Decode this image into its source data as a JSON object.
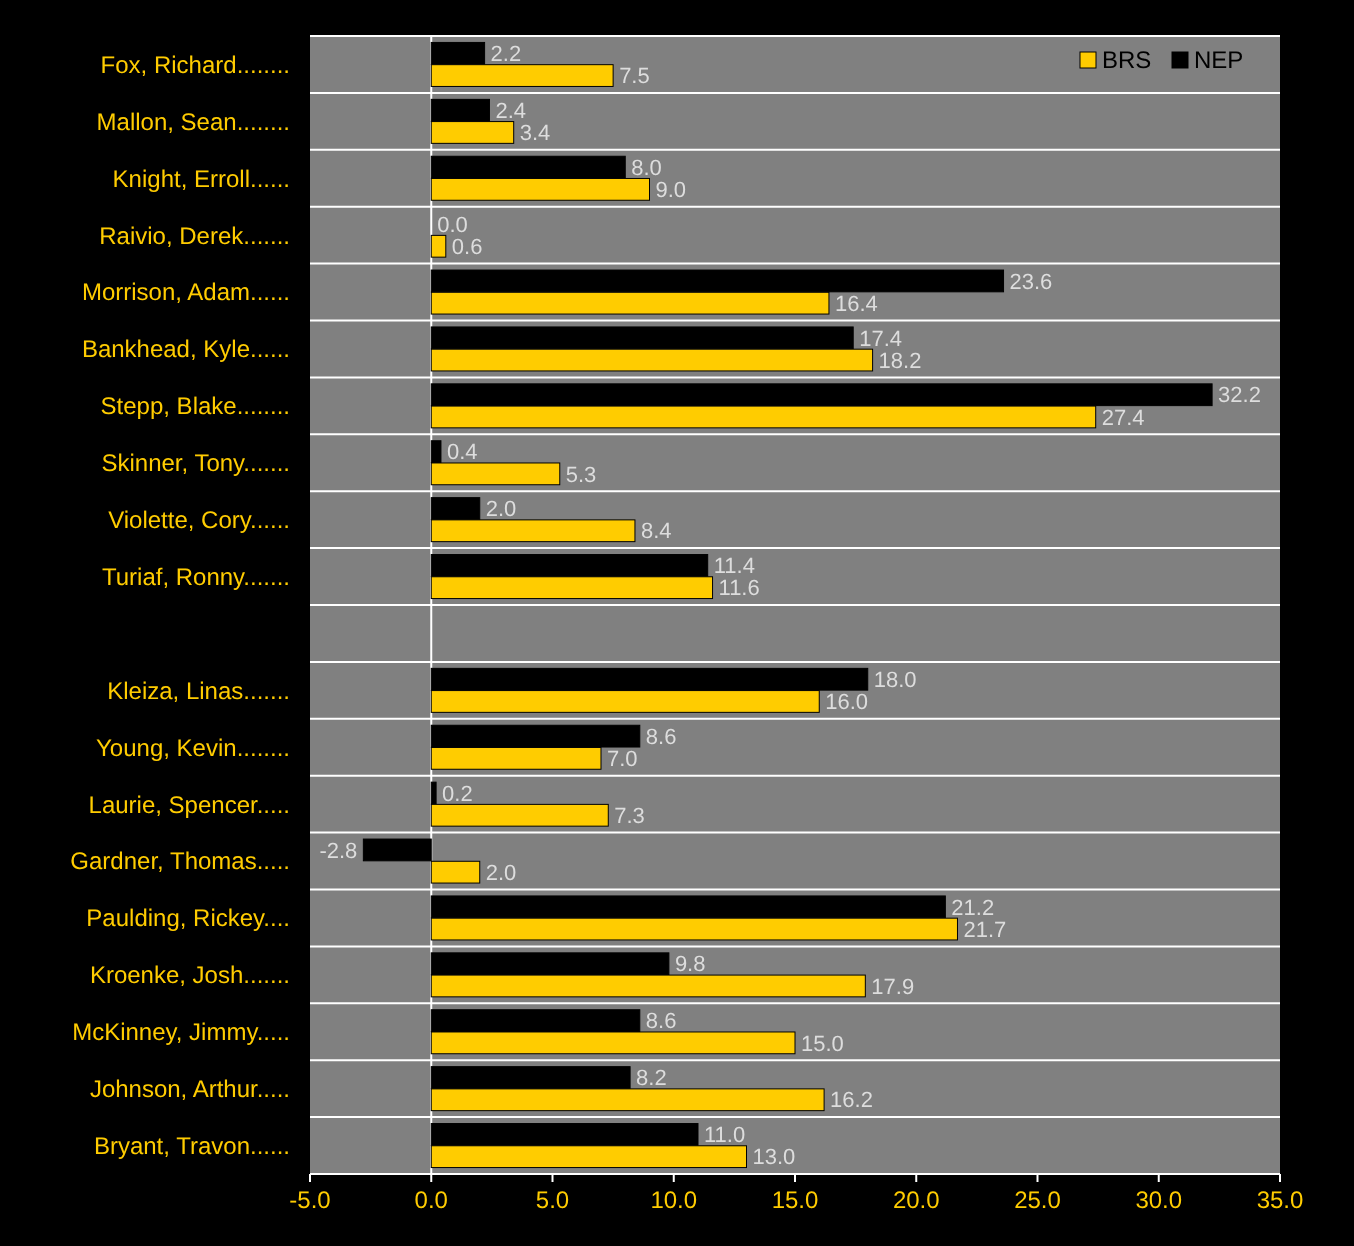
{
  "chart_data": {
    "type": "bar",
    "orientation": "horizontal",
    "categories": [
      "Fox, Richard........",
      "Mallon, Sean........",
      "Knight, Erroll......",
      "Raivio, Derek.......",
      "Morrison, Adam......",
      "Bankhead, Kyle......",
      "Stepp, Blake........",
      "Skinner, Tony.......",
      "Violette, Cory......",
      "Turiaf, Ronny.......",
      null,
      "Kleiza, Linas.......",
      "Young, Kevin........",
      "Laurie, Spencer.....",
      "Gardner, Thomas.....",
      "Paulding, Rickey....",
      "Kroenke, Josh.......",
      "McKinney, Jimmy.....",
      "Johnson, Arthur.....",
      "Bryant, Travon......"
    ],
    "series": [
      {
        "name": "NEP",
        "color": "#000000",
        "values": [
          2.2,
          2.4,
          8.0,
          0.0,
          23.6,
          17.4,
          32.2,
          0.4,
          2.0,
          11.4,
          null,
          18.0,
          8.6,
          0.2,
          -2.8,
          21.2,
          9.8,
          8.6,
          8.2,
          11.0
        ],
        "value_labels": [
          "2.2",
          "2.4",
          "8.0",
          "0.0",
          "23.6",
          "17.4",
          "32.2",
          "0.4",
          "2.0",
          "11.4",
          null,
          "18.0",
          "8.6",
          "0.2",
          "-2.8",
          "21.2",
          "9.8",
          "8.6",
          "8.2",
          "11.0"
        ]
      },
      {
        "name": "BRS",
        "color": "#ffcc00",
        "values": [
          7.5,
          3.4,
          9.0,
          0.6,
          16.4,
          18.2,
          27.4,
          5.3,
          8.4,
          11.6,
          null,
          16.0,
          7.0,
          7.3,
          2.0,
          21.7,
          17.9,
          15.0,
          16.2,
          13.0
        ],
        "value_labels": [
          "7.5",
          "3.4",
          "9.0",
          "0.6",
          "16.4",
          "18.2",
          "27.4",
          "5.3",
          "8.4",
          "11.6",
          null,
          "16.0",
          "7.0",
          "7.3",
          "2.0",
          "21.7",
          "17.9",
          "15.0",
          "16.2",
          "13.0"
        ]
      }
    ],
    "xlim": [
      -5,
      35
    ],
    "xticks": [
      {
        "value": -5,
        "label": "-5.0"
      },
      {
        "value": 0,
        "label": "0.0"
      },
      {
        "value": 5,
        "label": "5.0"
      },
      {
        "value": 10,
        "label": "10.0"
      },
      {
        "value": 15,
        "label": "15.0"
      },
      {
        "value": 20,
        "label": "20.0"
      },
      {
        "value": 25,
        "label": "25.0"
      },
      {
        "value": 30,
        "label": "30.0"
      },
      {
        "value": 35,
        "label": "35.0"
      }
    ],
    "ref_lines": [
      {
        "axis": "x",
        "value": 0,
        "color": "#ffffff"
      }
    ],
    "grid": "y",
    "legend": "top right"
  }
}
